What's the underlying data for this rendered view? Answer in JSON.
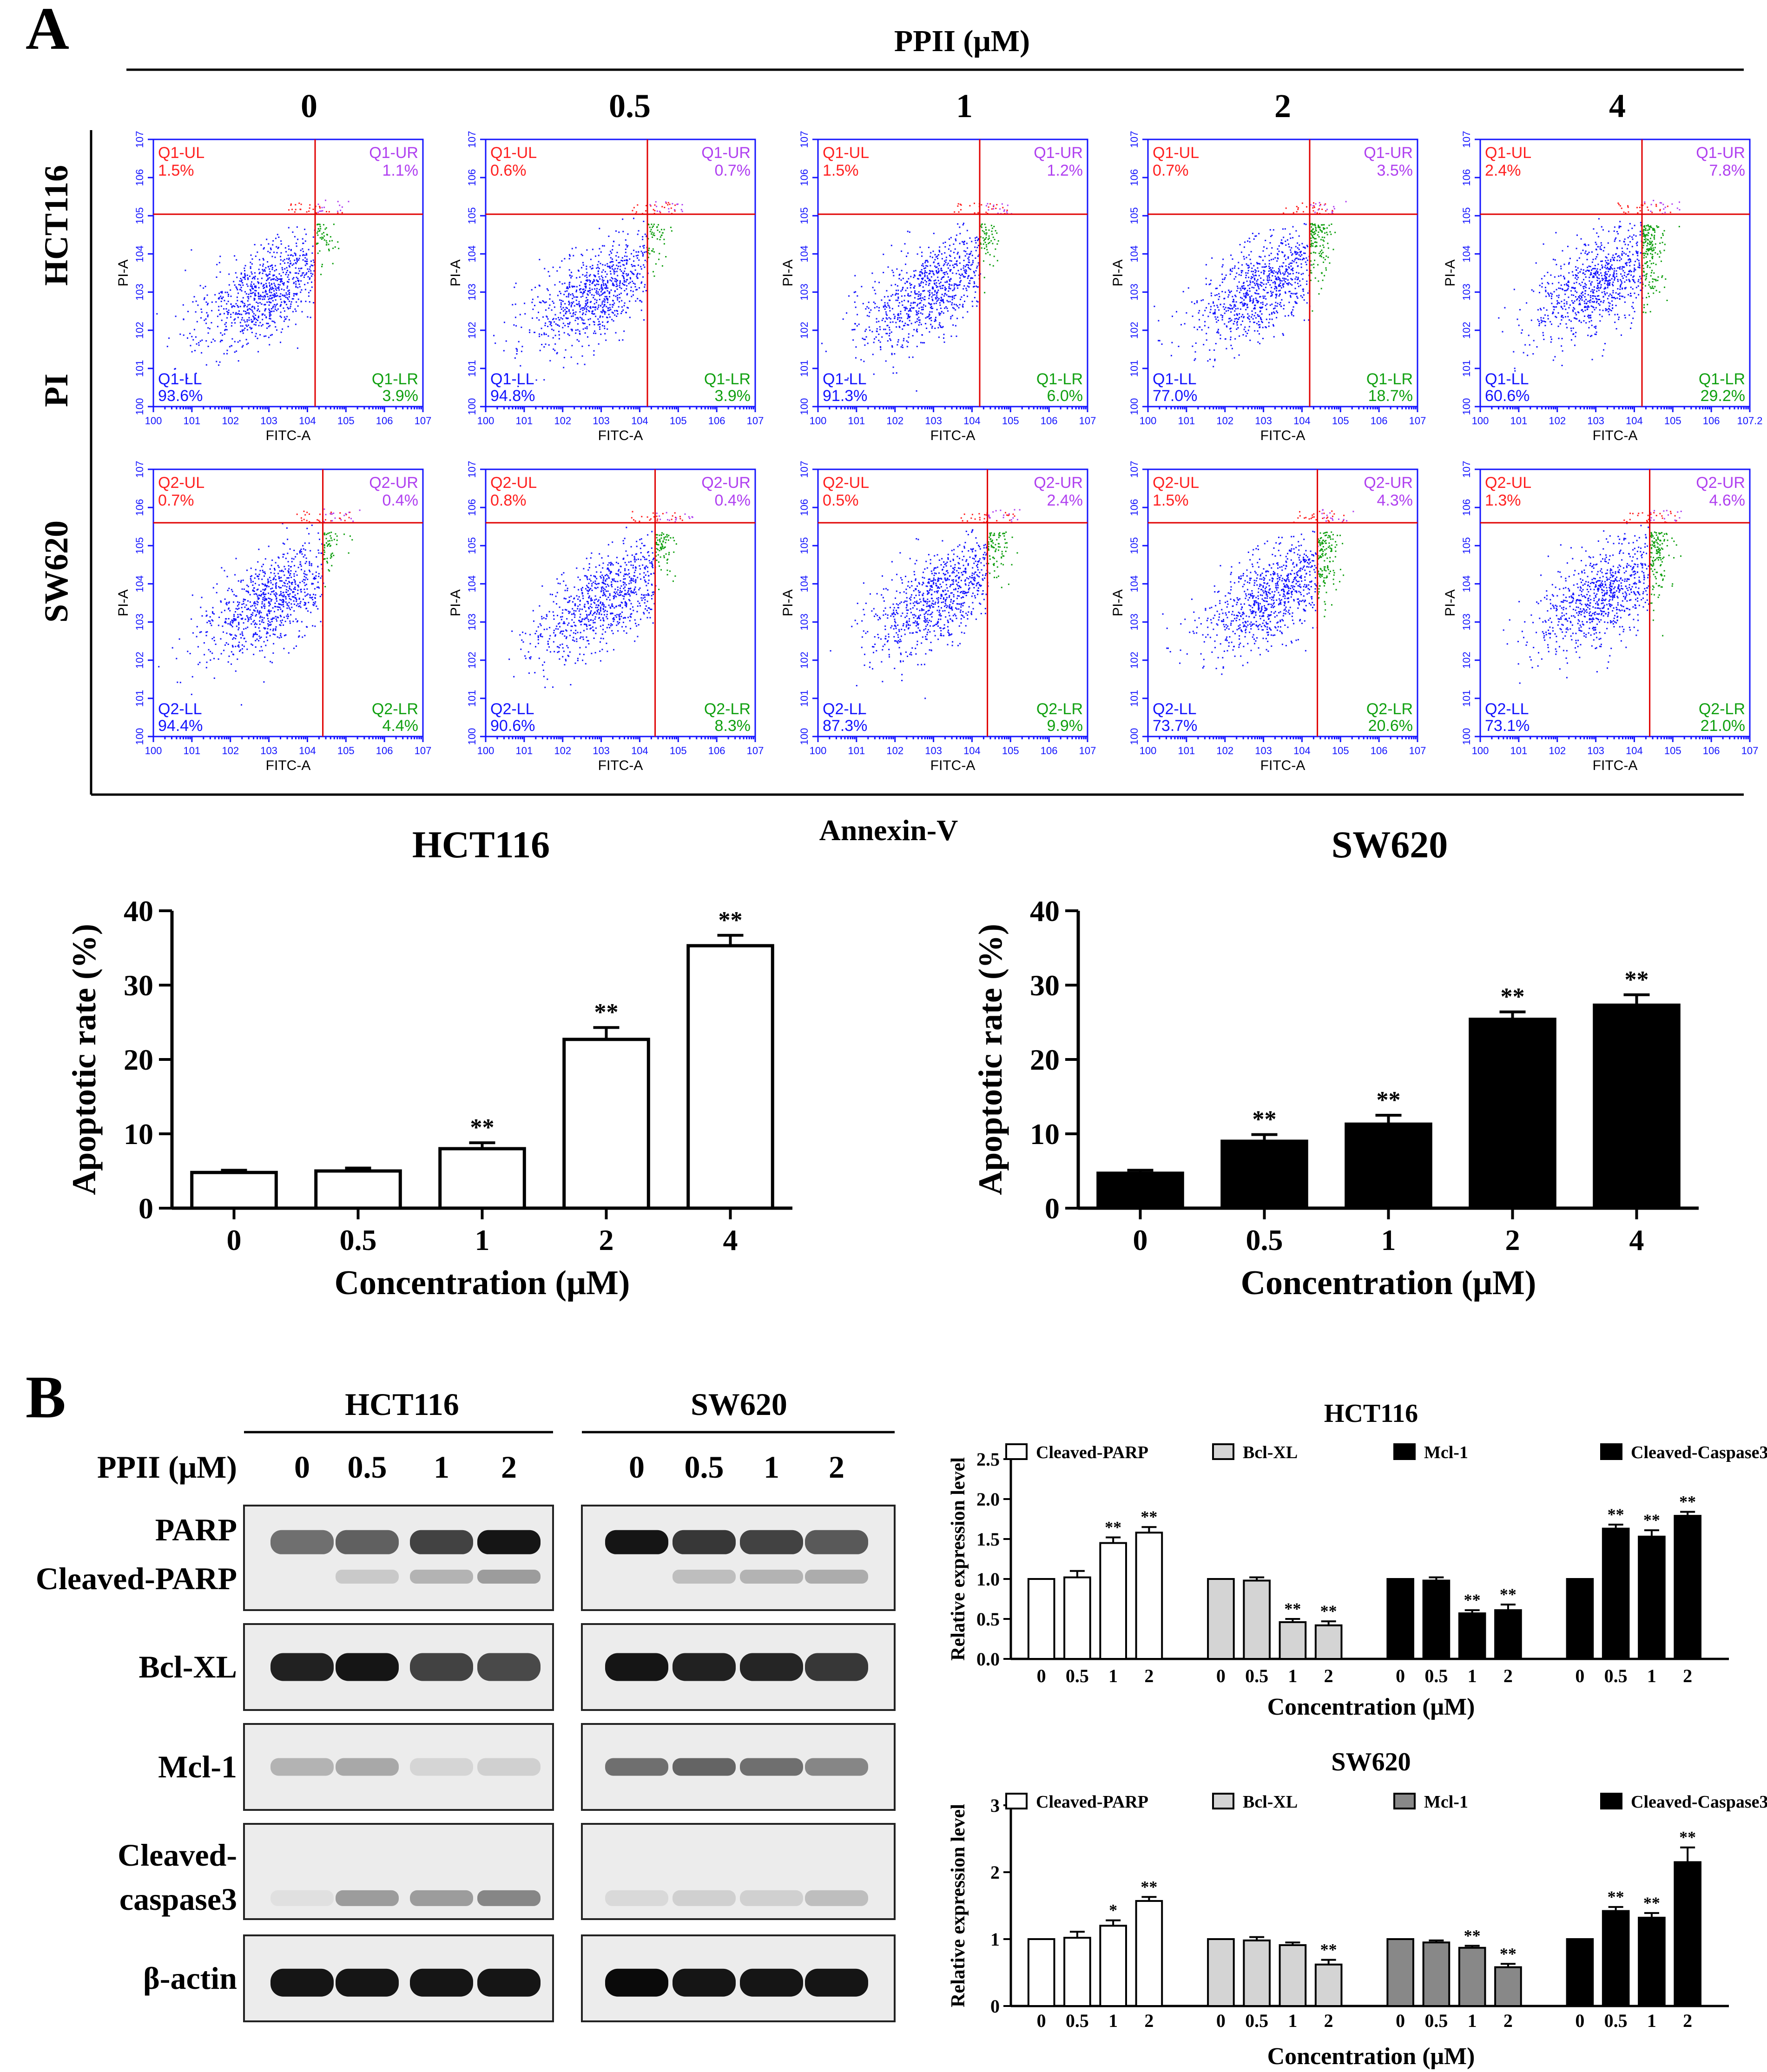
{
  "figure": {
    "panel_a": "A",
    "panel_b": "B",
    "treatment_label": "PPII (μM)",
    "doses": [
      "0",
      "0.5",
      "1",
      "2",
      "4"
    ],
    "row_labels": [
      "HCT116",
      "SW620"
    ],
    "y_axis_label": "PI",
    "x_axis_label": "Annexin-V"
  },
  "flow": {
    "plot_xlabel": "FITC-A",
    "plot_ylabel": "PI-A",
    "tick_labels": [
      "0",
      "1",
      "2",
      "3",
      "4",
      "5",
      "6",
      "7"
    ],
    "last_tick_alt": "7.2",
    "colors": {
      "ul": "#ff2020",
      "ur": "#b040f0",
      "ll": "#1414ff",
      "lr": "#10a010",
      "gate": "#e00000",
      "frame": "#1414ff"
    },
    "rows": [
      {
        "prefix": "Q1",
        "plots": [
          {
            "ul": "1.5%",
            "ur": "1.1%",
            "ll": "93.6%",
            "lr": "3.9%"
          },
          {
            "ul": "0.6%",
            "ur": "0.7%",
            "ll": "94.8%",
            "lr": "3.9%"
          },
          {
            "ul": "1.5%",
            "ur": "1.2%",
            "ll": "91.3%",
            "lr": "6.0%"
          },
          {
            "ul": "0.7%",
            "ur": "3.5%",
            "ll": "77.0%",
            "lr": "18.7%"
          },
          {
            "ul": "2.4%",
            "ur": "7.8%",
            "ll": "60.6%",
            "lr": "29.2%"
          }
        ]
      },
      {
        "prefix": "Q2",
        "plots": [
          {
            "ul": "0.7%",
            "ur": "0.4%",
            "ll": "94.4%",
            "lr": "4.4%"
          },
          {
            "ul": "0.8%",
            "ur": "0.4%",
            "ll": "90.6%",
            "lr": "8.3%"
          },
          {
            "ul": "0.5%",
            "ur": "2.4%",
            "ll": "87.3%",
            "lr": "9.9%"
          },
          {
            "ul": "1.5%",
            "ur": "4.3%",
            "ll": "73.7%",
            "lr": "20.6%"
          },
          {
            "ul": "1.3%",
            "ur": "4.6%",
            "ll": "73.1%",
            "lr": "21.0%"
          }
        ]
      }
    ]
  },
  "chart_data": [
    {
      "type": "bar",
      "title": "HCT116",
      "xlabel": "Concentration (μM)",
      "ylabel": "Apoptotic rate (%)",
      "categories": [
        "0",
        "0.5",
        "1",
        "2",
        "4"
      ],
      "values": [
        4.8,
        5.0,
        8.0,
        22.7,
        35.3
      ],
      "errors": [
        0.3,
        0.4,
        0.8,
        1.6,
        1.4
      ],
      "significance": [
        "",
        "",
        "**",
        "**",
        "**"
      ],
      "ylim": [
        0,
        40
      ],
      "yticks": [
        0,
        10,
        20,
        30,
        40
      ],
      "fill": "#ffffff"
    },
    {
      "type": "bar",
      "title": "SW620",
      "xlabel": "Concentration (μM)",
      "ylabel": "Apoptotic rate (%)",
      "categories": [
        "0",
        "0.5",
        "1",
        "2",
        "4"
      ],
      "values": [
        4.7,
        9.0,
        11.3,
        25.4,
        27.3
      ],
      "errors": [
        0.4,
        0.9,
        1.2,
        1.0,
        1.4
      ],
      "significance": [
        "",
        "**",
        "**",
        "**",
        "**"
      ],
      "ylim": [
        0,
        40
      ],
      "yticks": [
        0,
        10,
        20,
        30,
        40
      ],
      "fill": "#000000"
    },
    {
      "type": "bar",
      "title": "HCT116",
      "xlabel": "Concentration (μM)",
      "ylabel": "Relative expression level",
      "ylim": [
        0,
        2.5
      ],
      "yticks": [
        "0.0",
        "0.5",
        "1.0",
        "1.5",
        "2.0",
        "2.5"
      ],
      "categories": [
        "0",
        "0.5",
        "1",
        "2"
      ],
      "series": [
        {
          "name": "Cleaved-PARP",
          "color": "#ffffff",
          "values": [
            1.0,
            1.02,
            1.45,
            1.58
          ],
          "errors": [
            0,
            0.08,
            0.07,
            0.07
          ],
          "significance": [
            "",
            "",
            "**",
            "**"
          ]
        },
        {
          "name": "Bcl-XL",
          "color": "#d4d4d4",
          "values": [
            1.0,
            0.98,
            0.46,
            0.42
          ],
          "errors": [
            0,
            0.04,
            0.04,
            0.05
          ],
          "significance": [
            "",
            "",
            "**",
            "**"
          ]
        },
        {
          "name": "Mcl-1",
          "color": "#000000",
          "values": [
            1.0,
            0.98,
            0.57,
            0.61
          ],
          "errors": [
            0,
            0.04,
            0.04,
            0.07
          ],
          "significance": [
            "",
            "",
            "**",
            "**"
          ]
        },
        {
          "name": "Cleaved-Caspase3",
          "color": "#000000",
          "values": [
            1.0,
            1.63,
            1.53,
            1.79
          ],
          "errors": [
            0,
            0.05,
            0.08,
            0.05
          ],
          "significance": [
            "",
            "**",
            "**",
            "**"
          ]
        }
      ]
    },
    {
      "type": "bar",
      "title": "SW620",
      "xlabel": "Concentration (μM)",
      "ylabel": "Relative expression level",
      "ylim": [
        0,
        3
      ],
      "yticks": [
        "0",
        "1",
        "2",
        "3"
      ],
      "categories": [
        "0",
        "0.5",
        "1",
        "2"
      ],
      "series": [
        {
          "name": "Cleaved-PARP",
          "color": "#ffffff",
          "values": [
            1.0,
            1.02,
            1.2,
            1.57
          ],
          "errors": [
            0,
            0.09,
            0.08,
            0.06
          ],
          "significance": [
            "",
            "",
            "*",
            "**"
          ]
        },
        {
          "name": "Bcl-XL",
          "color": "#d4d4d4",
          "values": [
            1.0,
            0.98,
            0.91,
            0.62
          ],
          "errors": [
            0,
            0.05,
            0.04,
            0.07
          ],
          "significance": [
            "",
            "",
            "",
            "**"
          ]
        },
        {
          "name": "Mcl-1",
          "color": "#888888",
          "values": [
            1.0,
            0.95,
            0.87,
            0.58
          ],
          "errors": [
            0,
            0.03,
            0.03,
            0.05
          ],
          "significance": [
            "",
            "",
            "**",
            "**"
          ]
        },
        {
          "name": "Cleaved-Caspase3",
          "color": "#000000",
          "values": [
            1.0,
            1.42,
            1.32,
            2.15
          ],
          "errors": [
            0,
            0.06,
            0.07,
            0.22
          ],
          "significance": [
            "",
            "**",
            "**",
            "**"
          ]
        }
      ]
    }
  ],
  "western": {
    "groups": [
      "HCT116",
      "SW620"
    ],
    "treatment_label": "PPII (μM)",
    "doses": [
      "0",
      "0.5",
      "1",
      "2"
    ],
    "proteins": [
      "PARP",
      "Cleaved-PARP",
      "Bcl-XL",
      "Mcl-1",
      "Cleaved-",
      "caspase3",
      "β-actin"
    ],
    "intensity": {
      "hct_parp": [
        0.55,
        0.62,
        0.75,
        0.95
      ],
      "hct_cleaved_parp": [
        0.0,
        0.15,
        0.25,
        0.35
      ],
      "hct_bclxl": [
        0.9,
        0.95,
        0.75,
        0.72
      ],
      "hct_mcl1": [
        0.25,
        0.3,
        0.1,
        0.12
      ],
      "hct_casp3": [
        0.05,
        0.35,
        0.35,
        0.45
      ],
      "hct_actin": [
        0.95,
        0.95,
        0.95,
        0.95
      ],
      "sw_parp": [
        0.95,
        0.8,
        0.75,
        0.65
      ],
      "sw_cleaved_parp": [
        0.0,
        0.2,
        0.25,
        0.28
      ],
      "sw_bclxl": [
        0.95,
        0.9,
        0.88,
        0.8
      ],
      "sw_mcl1": [
        0.55,
        0.6,
        0.55,
        0.45
      ],
      "sw_casp3": [
        0.08,
        0.12,
        0.12,
        0.2
      ],
      "sw_actin": [
        1.0,
        0.95,
        0.95,
        0.95
      ]
    }
  }
}
